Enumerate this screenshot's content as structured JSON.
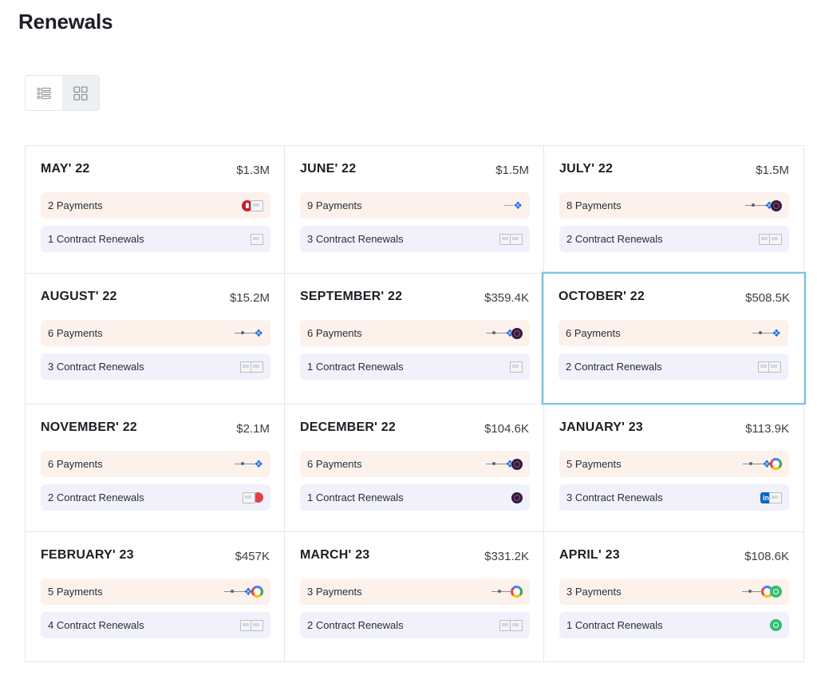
{
  "page": {
    "title": "Renewals"
  },
  "view_toggle": {
    "list_icon": "list-icon",
    "grid_icon": "grid-icon",
    "active": "grid"
  },
  "months": [
    {
      "month": "MAY' 22",
      "amount": "$1.3M",
      "payments": {
        "label": "2 Payments",
        "logos": [
          "red-pin-logo",
          "document-logo"
        ]
      },
      "renewals": {
        "label": "1 Contract Renewals",
        "logos": [
          "document-logo"
        ]
      }
    },
    {
      "month": "JUNE' 22",
      "amount": "$1.5M",
      "payments": {
        "label": "9 Payments",
        "logos": [
          "wordmark-logo",
          "dropbox-logo"
        ]
      },
      "renewals": {
        "label": "3 Contract Renewals",
        "logos": [
          "document-logo",
          "document-logo"
        ]
      }
    },
    {
      "month": "JULY' 22",
      "amount": "$1.5M",
      "payments": {
        "label": "8 Payments",
        "logos": [
          "line-logo",
          "dropbox-logo",
          "globe-logo"
        ]
      },
      "renewals": {
        "label": "2 Contract Renewals",
        "logos": [
          "document-logo",
          "document-logo"
        ]
      }
    },
    {
      "month": "AUGUST' 22",
      "amount": "$15.2M",
      "payments": {
        "label": "6 Payments",
        "logos": [
          "line-logo",
          "dropbox-logo"
        ]
      },
      "renewals": {
        "label": "3 Contract Renewals",
        "logos": [
          "document-logo",
          "document-logo"
        ]
      }
    },
    {
      "month": "SEPTEMBER' 22",
      "amount": "$359.4K",
      "payments": {
        "label": "6 Payments",
        "logos": [
          "line-logo",
          "dropbox-logo",
          "globe-logo"
        ]
      },
      "renewals": {
        "label": "1 Contract Renewals",
        "logos": [
          "document-logo"
        ]
      }
    },
    {
      "month": "OCTOBER' 22",
      "amount": "$508.5K",
      "selected": true,
      "payments": {
        "label": "6 Payments",
        "logos": [
          "line-logo",
          "dropbox-logo"
        ]
      },
      "renewals": {
        "label": "2 Contract Renewals",
        "logos": [
          "document-logo",
          "document-logo"
        ]
      }
    },
    {
      "month": "NOVEMBER' 22",
      "amount": "$2.1M",
      "payments": {
        "label": "6 Payments",
        "logos": [
          "line-logo",
          "dropbox-logo"
        ]
      },
      "renewals": {
        "label": "2 Contract Renewals",
        "logos": [
          "document-logo",
          "red-logo"
        ]
      }
    },
    {
      "month": "DECEMBER' 22",
      "amount": "$104.6K",
      "payments": {
        "label": "6 Payments",
        "logos": [
          "line-logo",
          "dropbox-logo",
          "globe-logo"
        ]
      },
      "renewals": {
        "label": "1 Contract Renewals",
        "logos": [
          "globe-logo"
        ]
      }
    },
    {
      "month": "JANUARY' 23",
      "amount": "$113.9K",
      "payments": {
        "label": "5 Payments",
        "logos": [
          "line-logo",
          "dropbox-logo",
          "google-logo"
        ]
      },
      "renewals": {
        "label": "3 Contract Renewals",
        "logos": [
          "linkedin-logo",
          "document-logo"
        ]
      }
    },
    {
      "month": "FEBRUARY' 23",
      "amount": "$457K",
      "payments": {
        "label": "5 Payments",
        "logos": [
          "line-logo",
          "dropbox-logo",
          "google-logo"
        ]
      },
      "renewals": {
        "label": "4 Contract Renewals",
        "logos": [
          "document-logo",
          "document-logo"
        ]
      }
    },
    {
      "month": "MARCH' 23",
      "amount": "$331.2K",
      "payments": {
        "label": "3 Payments",
        "logos": [
          "line-logo",
          "google-logo"
        ]
      },
      "renewals": {
        "label": "2 Contract Renewals",
        "logos": [
          "document-logo",
          "document-logo"
        ]
      }
    },
    {
      "month": "APRIL' 23",
      "amount": "$108.6K",
      "payments": {
        "label": "3 Payments",
        "logos": [
          "line-logo",
          "google-logo",
          "green-g-logo"
        ]
      },
      "renewals": {
        "label": "1 Contract Renewals",
        "logos": [
          "green-g-logo"
        ]
      }
    }
  ],
  "colors": {
    "payments_bg": "#fdf1ec",
    "renewals_bg": "#f1f1fb",
    "selected_border": "#7cc3e8"
  }
}
